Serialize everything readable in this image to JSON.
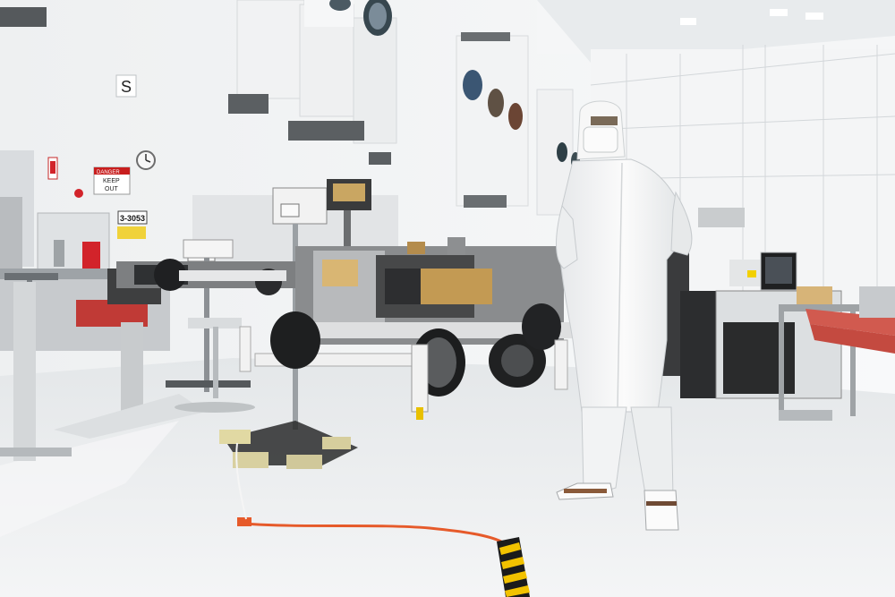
{
  "scene": {
    "wall_letter": "S",
    "room_number": "3-3053",
    "danger_sign": {
      "header": "DANGER",
      "line1": "KEEP",
      "line2": "OUT"
    }
  },
  "colors": {
    "wall": "#f3f4f5",
    "floor": "#eef0f1",
    "cleanroom_suit": "#f7f7f7",
    "extension_cord": "#e65a2a",
    "hazard_stripe_yellow": "#f2c200",
    "fire_alarm": "#d2232a",
    "rover_metal": "#6f6f6f"
  }
}
